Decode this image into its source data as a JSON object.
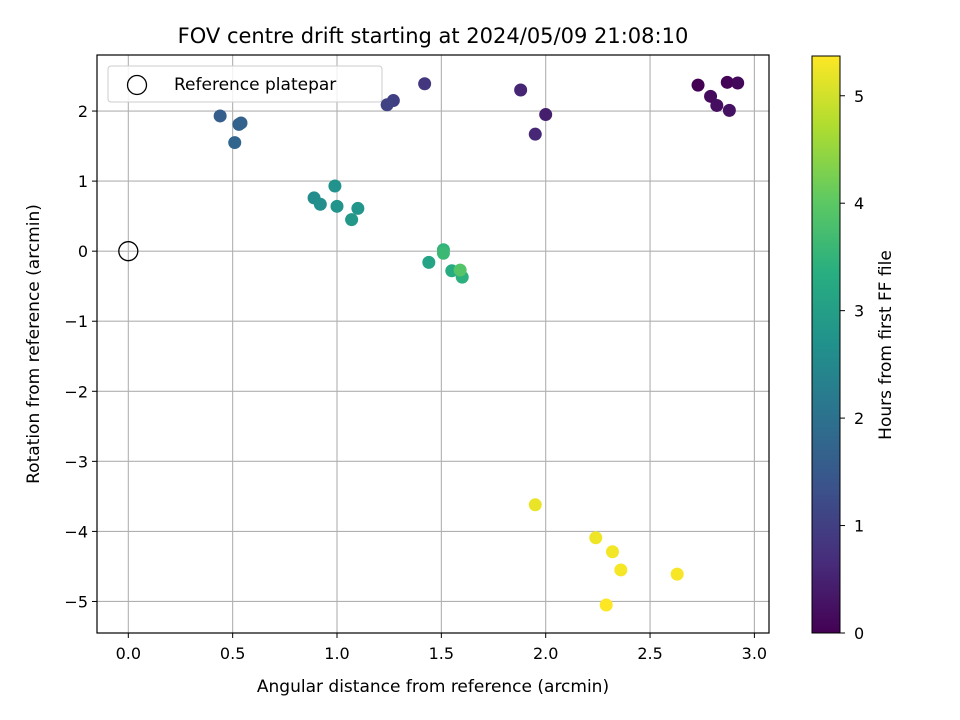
{
  "chart_data": {
    "type": "scatter",
    "title": "FOV centre drift starting at 2024/05/09 21:08:10",
    "xlabel": "Angular distance from reference (arcmin)",
    "ylabel": "Rotation from reference (arcmin)",
    "xlim": [
      -0.15,
      3.07
    ],
    "ylim": [
      -5.45,
      2.8
    ],
    "xticks": [
      0.0,
      0.5,
      1.0,
      1.5,
      2.0,
      2.5,
      3.0
    ],
    "xtick_labels": [
      "0.0",
      "0.5",
      "1.0",
      "1.5",
      "2.0",
      "2.5",
      "3.0"
    ],
    "yticks": [
      2,
      1,
      0,
      -1,
      -2,
      -3,
      -4,
      -5
    ],
    "ytick_labels": [
      "2",
      "1",
      "0",
      "−1",
      "−2",
      "−3",
      "−4",
      "−5"
    ],
    "grid": true,
    "legend": {
      "position": "top-left",
      "entries": [
        "Reference platepar"
      ]
    },
    "reference_point": {
      "x": 0.0,
      "y": 0.0,
      "label": "Reference platepar"
    },
    "colorbar": {
      "label": "Hours from first FF file",
      "range": [
        0,
        5.37
      ],
      "ticks": [
        0,
        1,
        2,
        3,
        4,
        5
      ],
      "tick_labels": [
        "0",
        "1",
        "2",
        "3",
        "4",
        "5"
      ],
      "colormap": "viridis"
    },
    "points": [
      {
        "x": 2.73,
        "y": 2.37,
        "t": 0.0
      },
      {
        "x": 2.87,
        "y": 2.41,
        "t": 0.05
      },
      {
        "x": 2.92,
        "y": 2.4,
        "t": 0.1
      },
      {
        "x": 2.79,
        "y": 2.21,
        "t": 0.15
      },
      {
        "x": 2.82,
        "y": 2.08,
        "t": 0.2
      },
      {
        "x": 2.88,
        "y": 2.01,
        "t": 0.25
      },
      {
        "x": 2.0,
        "y": 1.95,
        "t": 0.45
      },
      {
        "x": 1.88,
        "y": 2.3,
        "t": 0.55
      },
      {
        "x": 1.95,
        "y": 1.67,
        "t": 0.6
      },
      {
        "x": 1.42,
        "y": 2.39,
        "t": 0.85
      },
      {
        "x": 1.27,
        "y": 2.15,
        "t": 1.0
      },
      {
        "x": 1.24,
        "y": 2.09,
        "t": 1.05
      },
      {
        "x": 0.44,
        "y": 1.93,
        "t": 1.6
      },
      {
        "x": 0.53,
        "y": 1.81,
        "t": 1.65
      },
      {
        "x": 0.54,
        "y": 1.83,
        "t": 1.7
      },
      {
        "x": 0.51,
        "y": 1.55,
        "t": 1.75
      },
      {
        "x": 0.89,
        "y": 0.76,
        "t": 2.6
      },
      {
        "x": 0.92,
        "y": 0.67,
        "t": 2.65
      },
      {
        "x": 0.99,
        "y": 0.93,
        "t": 2.7
      },
      {
        "x": 1.0,
        "y": 0.64,
        "t": 2.75
      },
      {
        "x": 1.1,
        "y": 0.61,
        "t": 2.8
      },
      {
        "x": 1.07,
        "y": 0.45,
        "t": 2.85
      },
      {
        "x": 1.44,
        "y": -0.16,
        "t": 3.1
      },
      {
        "x": 1.55,
        "y": -0.28,
        "t": 3.3
      },
      {
        "x": 1.51,
        "y": 0.02,
        "t": 3.5
      },
      {
        "x": 1.51,
        "y": -0.03,
        "t": 3.6
      },
      {
        "x": 1.6,
        "y": -0.37,
        "t": 3.4
      },
      {
        "x": 1.59,
        "y": -0.27,
        "t": 3.9
      },
      {
        "x": 1.95,
        "y": -3.62,
        "t": 5.2
      },
      {
        "x": 2.24,
        "y": -4.09,
        "t": 5.25
      },
      {
        "x": 2.32,
        "y": -4.29,
        "t": 5.28
      },
      {
        "x": 2.36,
        "y": -4.55,
        "t": 5.3
      },
      {
        "x": 2.63,
        "y": -4.61,
        "t": 5.32
      },
      {
        "x": 2.29,
        "y": -5.05,
        "t": 5.37
      }
    ]
  }
}
